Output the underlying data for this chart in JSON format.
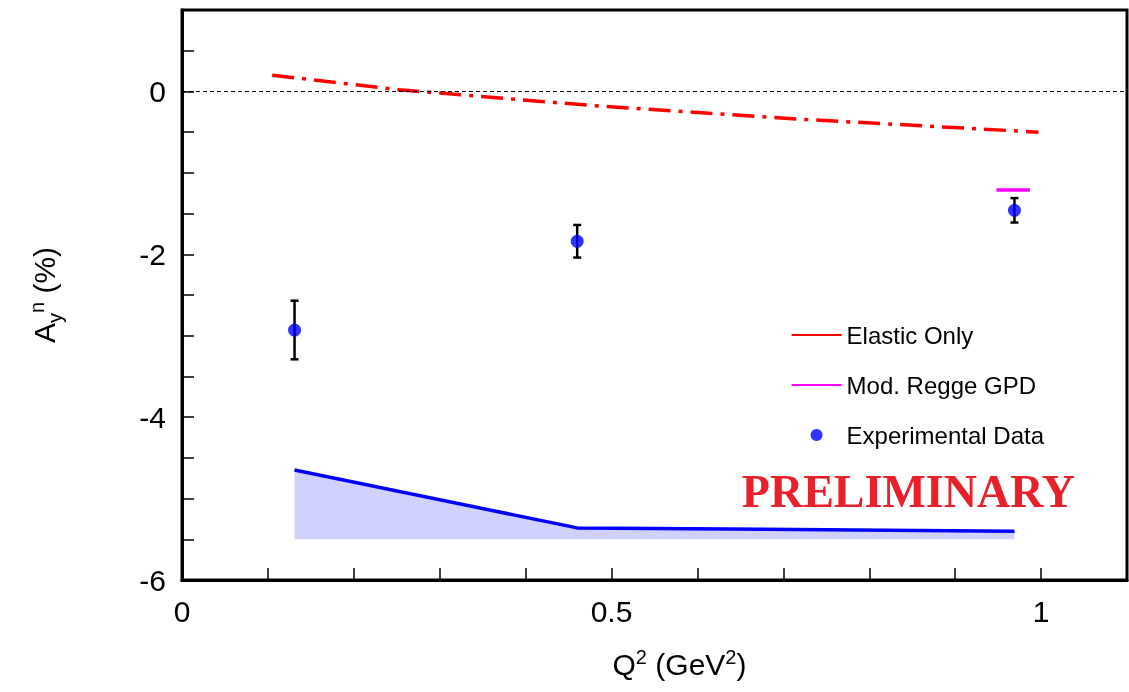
{
  "chart_data": {
    "type": "scatter",
    "xlabel": "Q$^{2}$ (GeV$^{2}$)",
    "ylabel": "A$_{y}$$^{n}$ (%)",
    "xlim": [
      0,
      1.1
    ],
    "ylim": [
      -6,
      1
    ],
    "xticks": [
      0,
      {
        "value": 0.1,
        "label": null
      },
      {
        "value": 0.2,
        "label": null
      },
      {
        "value": 0.3,
        "label": null
      },
      {
        "value": 0.4,
        "label": null
      },
      0.5,
      {
        "value": 0.6,
        "label": null
      },
      {
        "value": 0.7,
        "label": null
      },
      {
        "value": 0.8,
        "label": null
      },
      {
        "value": 0.9,
        "label": null
      },
      1
    ],
    "yticks": [
      -6,
      {
        "value": -5.5,
        "label": null
      },
      {
        "value": -5,
        "label": null
      },
      {
        "value": -4.5,
        "label": null
      },
      -4,
      {
        "value": -3.5,
        "label": null
      },
      {
        "value": -3,
        "label": null
      },
      {
        "value": -2.5,
        "label": null
      },
      -2,
      {
        "value": -1.5,
        "label": null
      },
      {
        "value": -1,
        "label": null
      },
      {
        "value": -0.5,
        "label": null
      },
      0,
      {
        "value": 0.5,
        "label": null
      }
    ],
    "series": [
      {
        "name": "Elastic Only",
        "type": "line",
        "color": "#ff0000",
        "line_style": "dashed",
        "marker": "none",
        "x": [
          0.105,
          0.253,
          0.485,
          0.718,
          0.997
        ],
        "values": [
          0.2,
          0.02,
          -0.18,
          -0.34,
          -0.5
        ]
      },
      {
        "name": "Mod. Regge GPD",
        "type": "line",
        "color": "#ff00ff",
        "line_style": "solid",
        "marker": "none",
        "x": [
          0.948,
          0.987
        ],
        "values": [
          -1.21,
          -1.21
        ]
      },
      {
        "name": "Experimental Data",
        "color": "#0000ff",
        "marker": "circle",
        "x": [
          0.131,
          0.46,
          0.969
        ],
        "values": [
          -2.93,
          -1.84,
          -1.46
        ],
        "errors": [
          0.36,
          0.2,
          0.15
        ]
      },
      {
        "type": "line",
        "color": "#0000ff",
        "line_style": "solid",
        "marker": "none",
        "x": [
          0.131,
          0.46,
          0.969
        ],
        "values": [
          -4.65,
          -5.36,
          -5.4
        ],
        "lower": [
          -5.5,
          -5.5,
          -5.5
        ],
        "upper": [
          -4.65,
          -5.36,
          -5.4
        ]
      }
    ],
    "ref_lines": [
      {
        "axis": "y",
        "value": 0,
        "color": "#000000",
        "line_style": "dashed"
      }
    ],
    "annotations": [
      "PRELIMINARY"
    ],
    "grid": false,
    "legend": "right"
  }
}
